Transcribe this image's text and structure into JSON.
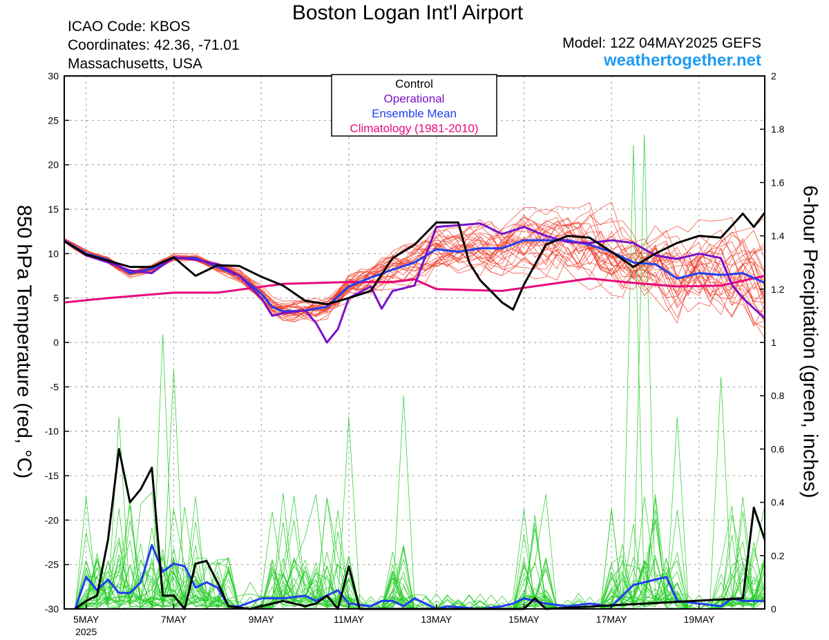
{
  "header": {
    "title": "Boston Logan Int'l Airport",
    "icao": "ICAO Code: KBOS",
    "coordinates": "Coordinates: 42.36, -71.01",
    "region": "Massachusetts, USA",
    "model": "Model: 12Z 04MAY2025 GEFS",
    "brand": "weathertogether.net"
  },
  "colors": {
    "control": "#000000",
    "operational": "#7a10c8",
    "ensemble_mean": "#1f3ff0",
    "climatology": "#e8087c",
    "members_temp": "#f03c28",
    "members_precip": "#22cc22"
  },
  "chart_data": {
    "type": "line",
    "title": "Boston Logan Int'l Airport",
    "ylabel_left": "850 hPa Temperature (red, °C)",
    "ylabel_right": "6-hour Precipitation (green, inches)",
    "ylim_left": [
      -30,
      30
    ],
    "ylim_right": [
      0,
      2
    ],
    "xlim_days": [
      4.5,
      20.5
    ],
    "grid": true,
    "legend_position": "top-center",
    "x_ticks": [
      {
        "day": 5,
        "label": "5MAY",
        "sub": "2025"
      },
      {
        "day": 7,
        "label": "7MAY",
        "sub": ""
      },
      {
        "day": 9,
        "label": "9MAY",
        "sub": ""
      },
      {
        "day": 11,
        "label": "11MAY",
        "sub": ""
      },
      {
        "day": 13,
        "label": "13MAY",
        "sub": ""
      },
      {
        "day": 15,
        "label": "15MAY",
        "sub": ""
      },
      {
        "day": 17,
        "label": "17MAY",
        "sub": ""
      },
      {
        "day": 19,
        "label": "19MAY",
        "sub": ""
      }
    ],
    "left_ticks": [
      30,
      25,
      20,
      15,
      10,
      5,
      0,
      -5,
      -10,
      -15,
      -20,
      -25,
      -30
    ],
    "right_ticks": [
      {
        "v": 2,
        "label": "2"
      },
      {
        "v": 1.8,
        "label": "1.8"
      },
      {
        "v": 1.6,
        "label": "1.6"
      },
      {
        "v": 1.4,
        "label": "1.4"
      },
      {
        "v": 1.2,
        "label": "1.2"
      },
      {
        "v": 1,
        "label": "1"
      },
      {
        "v": 0.8,
        "label": "0.8"
      },
      {
        "v": 0.6,
        "label": "0.6"
      },
      {
        "v": 0.4,
        "label": "0.4"
      },
      {
        "v": 0.2,
        "label": "0.2"
      },
      {
        "v": 0,
        "label": "0"
      }
    ],
    "legend": [
      {
        "label": "Control",
        "color": "#000000"
      },
      {
        "label": "Operational",
        "color": "#7a10c8"
      },
      {
        "label": "Ensemble Mean",
        "color": "#1f3ff0"
      },
      {
        "label": "Climatology (1981-2010)",
        "color": "#e8087c"
      }
    ],
    "temperature_series": [
      {
        "name": "Climatology (1981-2010)",
        "color": "#e8087c",
        "width": 3,
        "points": [
          [
            4.5,
            4.5
          ],
          [
            5.5,
            5
          ],
          [
            7,
            5.6
          ],
          [
            8,
            5.6
          ],
          [
            9.5,
            6.6
          ],
          [
            11,
            6.8
          ],
          [
            12,
            6.8
          ],
          [
            12.5,
            7.1
          ],
          [
            13,
            6.0
          ],
          [
            14.5,
            5.8
          ],
          [
            15.5,
            6.5
          ],
          [
            16.5,
            7.2
          ],
          [
            17.5,
            6.7
          ],
          [
            18.5,
            6.3
          ],
          [
            19.5,
            6.4
          ],
          [
            20.5,
            7.5
          ]
        ]
      },
      {
        "name": "Ensemble Mean",
        "color": "#1f3ff0",
        "width": 3,
        "points": [
          [
            4.5,
            11.5
          ],
          [
            5,
            10
          ],
          [
            5.5,
            9.3
          ],
          [
            6,
            7.8
          ],
          [
            6.5,
            8.3
          ],
          [
            7,
            9.5
          ],
          [
            7.5,
            9.5
          ],
          [
            8,
            8.5
          ],
          [
            8.5,
            7.5
          ],
          [
            9,
            5.5
          ],
          [
            9.25,
            4
          ],
          [
            9.5,
            3.5
          ],
          [
            10,
            3.6
          ],
          [
            10.5,
            4
          ],
          [
            11,
            6.3
          ],
          [
            11.5,
            7.3
          ],
          [
            12,
            8.2
          ],
          [
            12.5,
            9
          ],
          [
            13,
            10.5
          ],
          [
            13.5,
            10.2
          ],
          [
            14,
            10.6
          ],
          [
            14.5,
            10.6
          ],
          [
            15,
            11.5
          ],
          [
            15.5,
            11.5
          ],
          [
            16,
            11.5
          ],
          [
            16.5,
            11
          ],
          [
            17,
            10.2
          ],
          [
            17.5,
            9
          ],
          [
            18,
            8.8
          ],
          [
            18.5,
            7.2
          ],
          [
            19,
            7.8
          ],
          [
            19.5,
            7.6
          ],
          [
            20,
            7.8
          ],
          [
            20.5,
            6.7
          ]
        ]
      },
      {
        "name": "Operational",
        "color": "#7a10c8",
        "width": 3,
        "points": [
          [
            4.5,
            11.5
          ],
          [
            5,
            9.8
          ],
          [
            5.5,
            9
          ],
          [
            6,
            8.1
          ],
          [
            6.5,
            7.8
          ],
          [
            7,
            9.6
          ],
          [
            7.5,
            9.3
          ],
          [
            8,
            8.8
          ],
          [
            8.5,
            7.5
          ],
          [
            9,
            5
          ],
          [
            9.25,
            3
          ],
          [
            9.5,
            3.3
          ],
          [
            10,
            3.6
          ],
          [
            10.25,
            2.2
          ],
          [
            10.5,
            0
          ],
          [
            10.75,
            1.5
          ],
          [
            11,
            5
          ],
          [
            11.5,
            6.3
          ],
          [
            11.75,
            3.8
          ],
          [
            12,
            5.8
          ],
          [
            12.5,
            6.4
          ],
          [
            13,
            13
          ],
          [
            13.5,
            13.2
          ],
          [
            14,
            13.4
          ],
          [
            14.5,
            12.2
          ],
          [
            15,
            13
          ],
          [
            15.5,
            12
          ],
          [
            16,
            11.3
          ],
          [
            16.5,
            11.2
          ],
          [
            17,
            11.5
          ],
          [
            17.5,
            11.2
          ],
          [
            18,
            9.8
          ],
          [
            18.5,
            9.4
          ],
          [
            19,
            10
          ],
          [
            19.5,
            9.5
          ],
          [
            19.75,
            6.5
          ],
          [
            20,
            5
          ],
          [
            20.5,
            2.7
          ]
        ]
      },
      {
        "name": "Control",
        "color": "#000000",
        "width": 3,
        "points": [
          [
            4.5,
            11.4
          ],
          [
            5,
            9.9
          ],
          [
            5.5,
            9.2
          ],
          [
            6,
            8.5
          ],
          [
            6.5,
            8.5
          ],
          [
            7,
            9.6
          ],
          [
            7.5,
            7.5
          ],
          [
            8,
            8.7
          ],
          [
            8.5,
            8.6
          ],
          [
            9,
            7.4
          ],
          [
            9.5,
            6.4
          ],
          [
            10,
            4.7
          ],
          [
            10.5,
            4.3
          ],
          [
            11,
            5
          ],
          [
            11.5,
            5.8
          ],
          [
            12,
            9.5
          ],
          [
            12.5,
            11
          ],
          [
            13,
            13.5
          ],
          [
            13.5,
            13.5
          ],
          [
            13.75,
            9
          ],
          [
            14,
            7
          ],
          [
            14.5,
            4.5
          ],
          [
            14.75,
            3.7
          ],
          [
            15,
            6.5
          ],
          [
            15.5,
            11
          ],
          [
            16,
            12
          ],
          [
            16.5,
            11.8
          ],
          [
            17,
            10.2
          ],
          [
            17.5,
            8.5
          ],
          [
            18,
            10
          ],
          [
            18.5,
            11.2
          ],
          [
            19,
            12
          ],
          [
            19.5,
            11.8
          ],
          [
            20,
            14.5
          ],
          [
            20.25,
            13
          ],
          [
            20.5,
            14.6
          ]
        ]
      }
    ],
    "precipitation_series": [
      {
        "name": "Ensemble Mean",
        "color": "#1f3ff0",
        "width": 3,
        "points": [
          [
            4.75,
            0
          ],
          [
            5,
            0.12
          ],
          [
            5.25,
            0.07
          ],
          [
            5.5,
            0.11
          ],
          [
            5.75,
            0.06
          ],
          [
            6,
            0.06
          ],
          [
            6.25,
            0.1
          ],
          [
            6.5,
            0.24
          ],
          [
            6.75,
            0.14
          ],
          [
            7,
            0.17
          ],
          [
            7.25,
            0.16
          ],
          [
            7.5,
            0.08
          ],
          [
            7.75,
            0.1
          ],
          [
            8,
            0.08
          ],
          [
            8.25,
            0.01
          ],
          [
            8.5,
            0.01
          ],
          [
            9,
            0.04
          ],
          [
            9.5,
            0.04
          ],
          [
            10,
            0.05
          ],
          [
            10.25,
            0.03
          ],
          [
            10.5,
            0.05
          ],
          [
            10.75,
            0.07
          ],
          [
            11,
            0.02
          ],
          [
            11.5,
            0.01
          ],
          [
            11.75,
            0.03
          ],
          [
            12,
            0.03
          ],
          [
            12.25,
            0.01
          ],
          [
            12.5,
            0.04
          ],
          [
            13,
            0
          ],
          [
            13.25,
            0.01
          ],
          [
            14,
            0
          ],
          [
            14.5,
            0.01
          ],
          [
            14.75,
            0.02
          ],
          [
            15,
            0.04
          ],
          [
            15.5,
            0.02
          ],
          [
            16,
            0.01
          ],
          [
            16.5,
            0.02
          ],
          [
            17,
            0.01
          ],
          [
            17.25,
            0.05
          ],
          [
            17.5,
            0.09
          ],
          [
            18,
            0.11
          ],
          [
            18.25,
            0.12
          ],
          [
            18.5,
            0.03
          ],
          [
            19,
            0.02
          ],
          [
            19.5,
            0.01
          ],
          [
            19.75,
            0.04
          ],
          [
            20,
            0.03
          ],
          [
            20.5,
            0.03
          ]
        ]
      },
      {
        "name": "Control",
        "color": "#000000",
        "width": 3,
        "points": [
          [
            4.75,
            0
          ],
          [
            5,
            0.03
          ],
          [
            5.25,
            0.05
          ],
          [
            5.5,
            0.26
          ],
          [
            5.75,
            0.6
          ],
          [
            6,
            0.4
          ],
          [
            6.25,
            0.45
          ],
          [
            6.5,
            0.53
          ],
          [
            6.75,
            0.05
          ],
          [
            7,
            0.05
          ],
          [
            7.25,
            0
          ],
          [
            7.5,
            0.17
          ],
          [
            7.75,
            0.18
          ],
          [
            8,
            0.1
          ],
          [
            8.25,
            0.01
          ],
          [
            8.75,
            0
          ],
          [
            9,
            0.01
          ],
          [
            9.5,
            0.03
          ],
          [
            10,
            0.01
          ],
          [
            10.25,
            0.02
          ],
          [
            10.5,
            0.05
          ],
          [
            10.75,
            0
          ],
          [
            11,
            0.16
          ],
          [
            11.25,
            0
          ],
          [
            11.5,
            0
          ],
          [
            15,
            0
          ],
          [
            15.25,
            0.04
          ],
          [
            15.5,
            0
          ],
          [
            20,
            0.04
          ],
          [
            20.25,
            0.38
          ],
          [
            20.5,
            0.26
          ]
        ]
      }
    ]
  }
}
